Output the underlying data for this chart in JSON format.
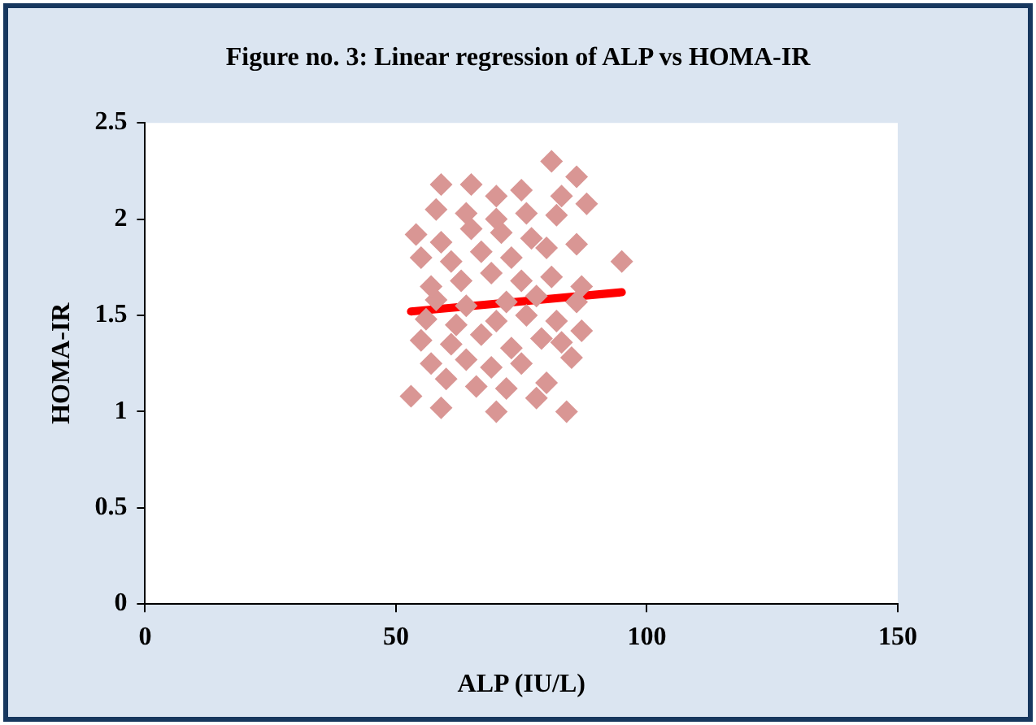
{
  "chart_data": {
    "type": "scatter",
    "title": "Figure no. 3: Linear regression of ALP vs HOMA-IR",
    "xlabel": "ALP (IU/L)",
    "ylabel": "HOMA-IR",
    "xlim": [
      0,
      150
    ],
    "xticks": [
      0,
      50,
      100,
      150
    ],
    "ylim": [
      0,
      2.5
    ],
    "yticks": [
      0,
      0.5,
      1,
      1.5,
      2,
      2.5
    ],
    "grid": false,
    "legend": false,
    "marker": "diamond",
    "series": [
      {
        "type": "scatter",
        "color": "#d99694",
        "x": [
          53,
          59,
          70,
          84,
          66,
          72,
          78,
          80,
          60,
          57,
          64,
          69,
          75,
          85,
          55,
          61,
          67,
          73,
          79,
          83,
          56,
          62,
          70,
          76,
          82,
          87,
          58,
          64,
          72,
          78,
          86,
          57,
          63,
          69,
          75,
          81,
          87,
          95,
          55,
          61,
          67,
          73,
          80,
          86,
          54,
          59,
          65,
          71,
          77,
          58,
          64,
          70,
          76,
          82,
          88,
          59,
          65,
          70,
          75,
          83,
          81,
          86
        ],
        "values": [
          1.08,
          1.02,
          1.0,
          1.0,
          1.13,
          1.12,
          1.07,
          1.15,
          1.17,
          1.25,
          1.27,
          1.23,
          1.25,
          1.28,
          1.37,
          1.35,
          1.4,
          1.33,
          1.38,
          1.36,
          1.48,
          1.45,
          1.47,
          1.5,
          1.47,
          1.42,
          1.58,
          1.55,
          1.57,
          1.6,
          1.57,
          1.65,
          1.68,
          1.72,
          1.68,
          1.7,
          1.65,
          1.78,
          1.8,
          1.78,
          1.83,
          1.8,
          1.85,
          1.87,
          1.92,
          1.88,
          1.95,
          1.93,
          1.9,
          2.05,
          2.03,
          2.0,
          2.03,
          2.02,
          2.08,
          2.18,
          2.18,
          2.12,
          2.15,
          2.12,
          2.3,
          2.22
        ]
      },
      {
        "type": "line",
        "color": "#ff0000",
        "marker": "none",
        "line_style": "solid",
        "x": [
          53,
          95
        ],
        "values": [
          1.52,
          1.62
        ]
      }
    ]
  }
}
